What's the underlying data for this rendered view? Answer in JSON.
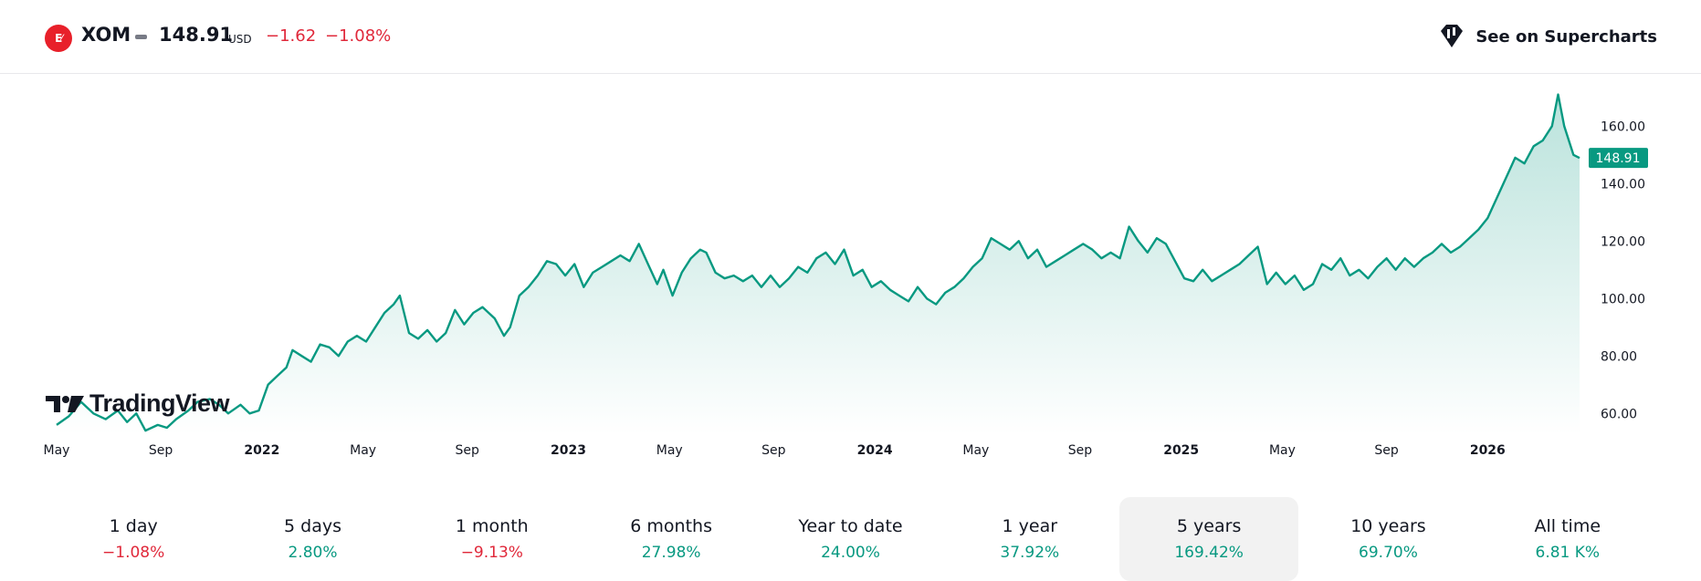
{
  "header": {
    "exchange_icon": "exchange-logo-icon",
    "exchange_icon_text": "E",
    "symbol": "XOM",
    "price": "148.91",
    "currency": "USD",
    "change": "−1.62",
    "change_percent": "−1.08%",
    "supercharts_label": "See on Supercharts",
    "supercharts_icon": "supercharts-icon"
  },
  "colors": {
    "line": "#089981",
    "negative": "#e0283a",
    "positive": "#089981",
    "last_price_badge": "#089981"
  },
  "watermark": {
    "text": "TradingView",
    "icon": "tradingview-logo-icon"
  },
  "chart_data": {
    "type": "area",
    "ylim": [
      55,
      175
    ],
    "y_ticks": [
      "60.00",
      "80.00",
      "100.00",
      "120.00",
      "140.00",
      "160.00"
    ],
    "y_tick_values": [
      60,
      80,
      100,
      120,
      140,
      160
    ],
    "x_ticks": [
      {
        "label": "May",
        "bold": false,
        "x": 2021.33
      },
      {
        "label": "Sep",
        "bold": false,
        "x": 2021.67
      },
      {
        "label": "2022",
        "bold": true,
        "x": 2022.0
      },
      {
        "label": "May",
        "bold": false,
        "x": 2022.33
      },
      {
        "label": "Sep",
        "bold": false,
        "x": 2022.67
      },
      {
        "label": "2023",
        "bold": true,
        "x": 2023.0
      },
      {
        "label": "May",
        "bold": false,
        "x": 2023.33
      },
      {
        "label": "Sep",
        "bold": false,
        "x": 2023.67
      },
      {
        "label": "2024",
        "bold": true,
        "x": 2024.0
      },
      {
        "label": "May",
        "bold": false,
        "x": 2024.33
      },
      {
        "label": "Sep",
        "bold": false,
        "x": 2024.67
      },
      {
        "label": "2025",
        "bold": true,
        "x": 2025.0
      },
      {
        "label": "May",
        "bold": false,
        "x": 2025.33
      },
      {
        "label": "Sep",
        "bold": false,
        "x": 2025.67
      },
      {
        "label": "2026",
        "bold": true,
        "x": 2026.0
      }
    ],
    "xlim": [
      2021.33,
      2026.3
    ],
    "last_value_label": "148.91",
    "points": [
      [
        2021.33,
        56
      ],
      [
        2021.37,
        59
      ],
      [
        2021.41,
        64
      ],
      [
        2021.45,
        60
      ],
      [
        2021.49,
        58
      ],
      [
        2021.53,
        61
      ],
      [
        2021.56,
        57
      ],
      [
        2021.59,
        60
      ],
      [
        2021.62,
        54
      ],
      [
        2021.66,
        56
      ],
      [
        2021.69,
        55
      ],
      [
        2021.72,
        58
      ],
      [
        2021.76,
        61
      ],
      [
        2021.79,
        64
      ],
      [
        2021.83,
        65
      ],
      [
        2021.86,
        63
      ],
      [
        2021.89,
        60
      ],
      [
        2021.93,
        63
      ],
      [
        2021.96,
        60
      ],
      [
        2021.99,
        61
      ],
      [
        2022.02,
        70
      ],
      [
        2022.05,
        73
      ],
      [
        2022.08,
        76
      ],
      [
        2022.1,
        82
      ],
      [
        2022.13,
        80
      ],
      [
        2022.16,
        78
      ],
      [
        2022.19,
        84
      ],
      [
        2022.22,
        83
      ],
      [
        2022.25,
        80
      ],
      [
        2022.28,
        85
      ],
      [
        2022.31,
        87
      ],
      [
        2022.34,
        85
      ],
      [
        2022.37,
        90
      ],
      [
        2022.4,
        95
      ],
      [
        2022.43,
        98
      ],
      [
        2022.45,
        101
      ],
      [
        2022.48,
        88
      ],
      [
        2022.51,
        86
      ],
      [
        2022.54,
        89
      ],
      [
        2022.57,
        85
      ],
      [
        2022.6,
        88
      ],
      [
        2022.63,
        96
      ],
      [
        2022.66,
        91
      ],
      [
        2022.69,
        95
      ],
      [
        2022.72,
        97
      ],
      [
        2022.76,
        93
      ],
      [
        2022.79,
        87
      ],
      [
        2022.81,
        90
      ],
      [
        2022.84,
        101
      ],
      [
        2022.87,
        104
      ],
      [
        2022.9,
        108
      ],
      [
        2022.93,
        113
      ],
      [
        2022.96,
        112
      ],
      [
        2022.99,
        108
      ],
      [
        2023.02,
        112
      ],
      [
        2023.05,
        104
      ],
      [
        2023.08,
        109
      ],
      [
        2023.11,
        111
      ],
      [
        2023.14,
        113
      ],
      [
        2023.17,
        115
      ],
      [
        2023.2,
        113
      ],
      [
        2023.23,
        119
      ],
      [
        2023.26,
        112
      ],
      [
        2023.29,
        105
      ],
      [
        2023.31,
        110
      ],
      [
        2023.34,
        101
      ],
      [
        2023.37,
        109
      ],
      [
        2023.4,
        114
      ],
      [
        2023.43,
        117
      ],
      [
        2023.45,
        116
      ],
      [
        2023.48,
        109
      ],
      [
        2023.51,
        107
      ],
      [
        2023.54,
        108
      ],
      [
        2023.57,
        106
      ],
      [
        2023.6,
        108
      ],
      [
        2023.63,
        104
      ],
      [
        2023.66,
        108
      ],
      [
        2023.69,
        104
      ],
      [
        2023.72,
        107
      ],
      [
        2023.75,
        111
      ],
      [
        2023.78,
        109
      ],
      [
        2023.81,
        114
      ],
      [
        2023.84,
        116
      ],
      [
        2023.87,
        112
      ],
      [
        2023.9,
        117
      ],
      [
        2023.93,
        108
      ],
      [
        2023.96,
        110
      ],
      [
        2023.99,
        104
      ],
      [
        2024.02,
        106
      ],
      [
        2024.05,
        103
      ],
      [
        2024.08,
        101
      ],
      [
        2024.11,
        99
      ],
      [
        2024.14,
        104
      ],
      [
        2024.17,
        100
      ],
      [
        2024.2,
        98
      ],
      [
        2024.23,
        102
      ],
      [
        2024.26,
        104
      ],
      [
        2024.29,
        107
      ],
      [
        2024.32,
        111
      ],
      [
        2024.35,
        114
      ],
      [
        2024.38,
        121
      ],
      [
        2024.41,
        119
      ],
      [
        2024.44,
        117
      ],
      [
        2024.47,
        120
      ],
      [
        2024.5,
        114
      ],
      [
        2024.53,
        117
      ],
      [
        2024.56,
        111
      ],
      [
        2024.59,
        113
      ],
      [
        2024.62,
        115
      ],
      [
        2024.65,
        117
      ],
      [
        2024.68,
        119
      ],
      [
        2024.71,
        117
      ],
      [
        2024.74,
        114
      ],
      [
        2024.77,
        116
      ],
      [
        2024.8,
        114
      ],
      [
        2024.83,
        125
      ],
      [
        2024.86,
        120
      ],
      [
        2024.89,
        116
      ],
      [
        2024.92,
        121
      ],
      [
        2024.95,
        119
      ],
      [
        2024.98,
        113
      ],
      [
        2025.01,
        107
      ],
      [
        2025.04,
        106
      ],
      [
        2025.07,
        110
      ],
      [
        2025.1,
        106
      ],
      [
        2025.13,
        108
      ],
      [
        2025.16,
        110
      ],
      [
        2025.19,
        112
      ],
      [
        2025.22,
        115
      ],
      [
        2025.25,
        118
      ],
      [
        2025.28,
        105
      ],
      [
        2025.31,
        109
      ],
      [
        2025.34,
        105
      ],
      [
        2025.37,
        108
      ],
      [
        2025.4,
        103
      ],
      [
        2025.43,
        105
      ],
      [
        2025.46,
        112
      ],
      [
        2025.49,
        110
      ],
      [
        2025.52,
        114
      ],
      [
        2025.55,
        108
      ],
      [
        2025.58,
        110
      ],
      [
        2025.61,
        107
      ],
      [
        2025.64,
        111
      ],
      [
        2025.67,
        114
      ],
      [
        2025.7,
        110
      ],
      [
        2025.73,
        114
      ],
      [
        2025.76,
        111
      ],
      [
        2025.79,
        114
      ],
      [
        2025.82,
        116
      ],
      [
        2025.85,
        119
      ],
      [
        2025.88,
        116
      ],
      [
        2025.91,
        118
      ],
      [
        2025.94,
        121
      ],
      [
        2025.97,
        124
      ],
      [
        2026.0,
        128
      ],
      [
        2026.03,
        135
      ],
      [
        2026.06,
        142
      ],
      [
        2026.09,
        149
      ],
      [
        2026.12,
        147
      ],
      [
        2026.15,
        153
      ],
      [
        2026.18,
        155
      ],
      [
        2026.21,
        160
      ],
      [
        2026.23,
        171
      ],
      [
        2026.25,
        160
      ],
      [
        2026.28,
        150
      ],
      [
        2026.3,
        148.91
      ]
    ]
  },
  "periods": [
    {
      "label": "1 day",
      "value": "−1.08%",
      "sign": "neg"
    },
    {
      "label": "5 days",
      "value": "2.80%",
      "sign": "pos"
    },
    {
      "label": "1 month",
      "value": "−9.13%",
      "sign": "neg"
    },
    {
      "label": "6 months",
      "value": "27.98%",
      "sign": "pos"
    },
    {
      "label": "Year to date",
      "value": "24.00%",
      "sign": "pos"
    },
    {
      "label": "1 year",
      "value": "37.92%",
      "sign": "pos"
    },
    {
      "label": "5 years",
      "value": "169.42%",
      "sign": "pos",
      "active": true
    },
    {
      "label": "10 years",
      "value": "69.70%",
      "sign": "pos"
    },
    {
      "label": "All time",
      "value": "6.81 K%",
      "sign": "pos"
    }
  ]
}
